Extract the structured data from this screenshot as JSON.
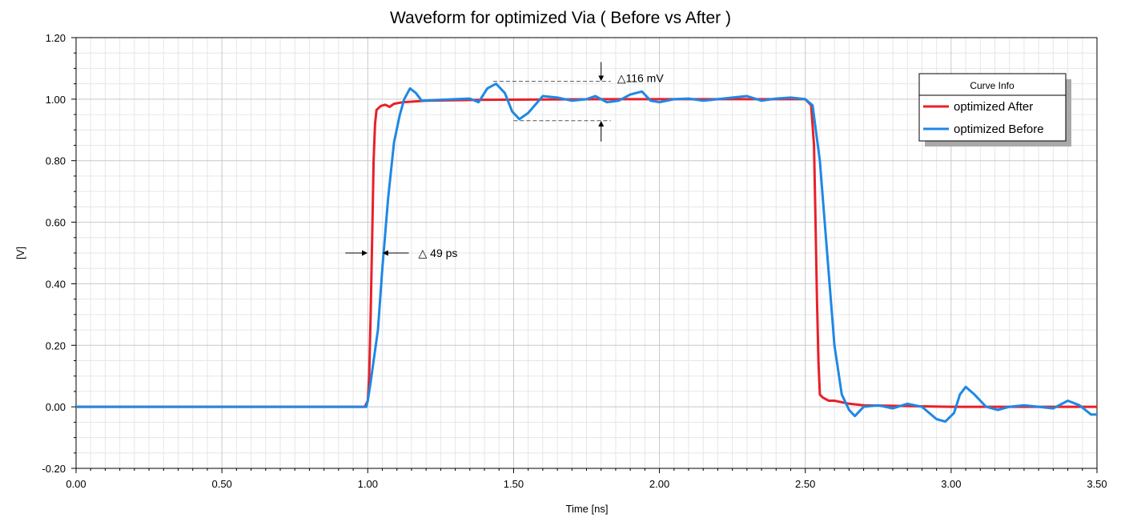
{
  "chart_data": {
    "type": "line",
    "title": "Waveform for optimized Via ( Before vs After )",
    "xlabel": "Time [ns]",
    "ylabel": "[V]",
    "xlim": [
      0,
      3.5
    ],
    "ylim": [
      -0.2,
      1.2
    ],
    "x_ticks": [
      "0.00",
      "0.50",
      "1.00",
      "1.50",
      "2.00",
      "2.50",
      "3.00",
      "3.50"
    ],
    "y_ticks": [
      "-0.20",
      "0.00",
      "0.20",
      "0.40",
      "0.60",
      "0.80",
      "1.00",
      "1.20"
    ],
    "grid": true,
    "legend": {
      "title": "Curve Info",
      "position": "top-right",
      "entries": [
        "optimized After",
        "optimized Before"
      ]
    },
    "series": [
      {
        "name": "optimized After",
        "color": "#e8202a",
        "points": [
          [
            0.0,
            0.0
          ],
          [
            0.99,
            0.0
          ],
          [
            1.0,
            0.02
          ],
          [
            1.005,
            0.1
          ],
          [
            1.01,
            0.3
          ],
          [
            1.015,
            0.55
          ],
          [
            1.02,
            0.8
          ],
          [
            1.025,
            0.92
          ],
          [
            1.03,
            0.965
          ],
          [
            1.045,
            0.978
          ],
          [
            1.06,
            0.982
          ],
          [
            1.075,
            0.975
          ],
          [
            1.09,
            0.985
          ],
          [
            1.12,
            0.99
          ],
          [
            1.2,
            0.995
          ],
          [
            1.4,
            0.998
          ],
          [
            1.8,
            1.0
          ],
          [
            2.2,
            1.0
          ],
          [
            2.5,
            1.0
          ],
          [
            2.52,
            0.98
          ],
          [
            2.53,
            0.85
          ],
          [
            2.535,
            0.6
          ],
          [
            2.54,
            0.35
          ],
          [
            2.545,
            0.15
          ],
          [
            2.55,
            0.04
          ],
          [
            2.56,
            0.03
          ],
          [
            2.58,
            0.02
          ],
          [
            2.6,
            0.02
          ],
          [
            2.65,
            0.01
          ],
          [
            2.7,
            0.005
          ],
          [
            3.0,
            0.0
          ],
          [
            3.5,
            0.0
          ]
        ]
      },
      {
        "name": "optimized Before",
        "color": "#1e88e5",
        "points": [
          [
            0.0,
            0.0
          ],
          [
            0.995,
            0.0
          ],
          [
            1.0,
            0.02
          ],
          [
            1.01,
            0.08
          ],
          [
            1.02,
            0.15
          ],
          [
            1.035,
            0.25
          ],
          [
            1.05,
            0.45
          ],
          [
            1.07,
            0.68
          ],
          [
            1.09,
            0.86
          ],
          [
            1.11,
            0.95
          ],
          [
            1.125,
            1.0
          ],
          [
            1.145,
            1.035
          ],
          [
            1.165,
            1.02
          ],
          [
            1.185,
            0.995
          ],
          [
            1.25,
            0.998
          ],
          [
            1.3,
            1.0
          ],
          [
            1.35,
            1.002
          ],
          [
            1.38,
            0.99
          ],
          [
            1.41,
            1.035
          ],
          [
            1.44,
            1.05
          ],
          [
            1.47,
            1.02
          ],
          [
            1.495,
            0.96
          ],
          [
            1.52,
            0.935
          ],
          [
            1.55,
            0.955
          ],
          [
            1.6,
            1.01
          ],
          [
            1.65,
            1.005
          ],
          [
            1.7,
            0.995
          ],
          [
            1.75,
            1.0
          ],
          [
            1.78,
            1.01
          ],
          [
            1.82,
            0.99
          ],
          [
            1.86,
            0.995
          ],
          [
            1.9,
            1.015
          ],
          [
            1.94,
            1.025
          ],
          [
            1.97,
            0.995
          ],
          [
            2.0,
            0.99
          ],
          [
            2.05,
            1.0
          ],
          [
            2.1,
            1.002
          ],
          [
            2.15,
            0.995
          ],
          [
            2.2,
            1.0
          ],
          [
            2.25,
            1.005
          ],
          [
            2.3,
            1.01
          ],
          [
            2.35,
            0.995
          ],
          [
            2.4,
            1.002
          ],
          [
            2.45,
            1.005
          ],
          [
            2.5,
            1.0
          ],
          [
            2.525,
            0.98
          ],
          [
            2.55,
            0.8
          ],
          [
            2.575,
            0.5
          ],
          [
            2.6,
            0.2
          ],
          [
            2.625,
            0.04
          ],
          [
            2.65,
            -0.01
          ],
          [
            2.67,
            -0.03
          ],
          [
            2.7,
            0.0
          ],
          [
            2.75,
            0.005
          ],
          [
            2.8,
            -0.005
          ],
          [
            2.85,
            0.01
          ],
          [
            2.9,
            0.0
          ],
          [
            2.95,
            -0.04
          ],
          [
            2.98,
            -0.048
          ],
          [
            3.01,
            -0.02
          ],
          [
            3.03,
            0.04
          ],
          [
            3.05,
            0.065
          ],
          [
            3.08,
            0.04
          ],
          [
            3.12,
            0.0
          ],
          [
            3.16,
            -0.01
          ],
          [
            3.2,
            0.0
          ],
          [
            3.25,
            0.005
          ],
          [
            3.3,
            0.0
          ],
          [
            3.35,
            -0.005
          ],
          [
            3.4,
            0.02
          ],
          [
            3.44,
            0.005
          ],
          [
            3.48,
            -0.025
          ],
          [
            3.5,
            -0.025
          ]
        ]
      }
    ],
    "annotations": [
      {
        "text": "△116 mV",
        "type": "vertical-span",
        "x": 1.8,
        "y_top": 1.058,
        "y_bottom": 0.93
      },
      {
        "text": "△ 49 ps",
        "type": "horizontal-span",
        "y": 0.5,
        "x_left": 1.0,
        "x_right": 1.05
      }
    ]
  }
}
